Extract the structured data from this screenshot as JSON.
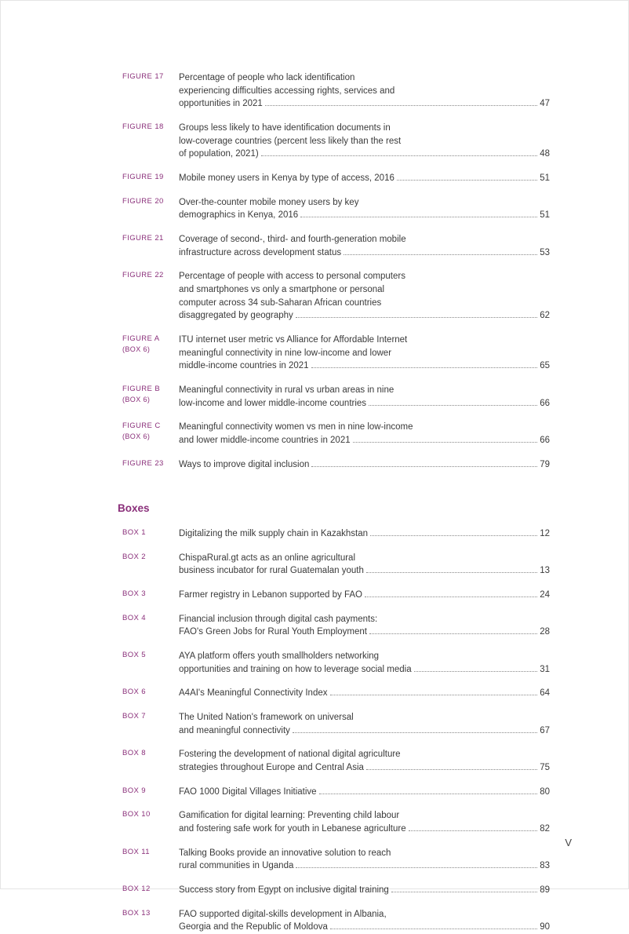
{
  "colors": {
    "accent": "#8a2f7a",
    "text": "#3a3a3a",
    "border": "#e5e5e5",
    "dot": "#888888",
    "background": "#ffffff"
  },
  "typography": {
    "body_fontsize": 11.5,
    "label_fontsize": 9.5,
    "header_fontsize": 13.5
  },
  "sections": [
    {
      "header": null,
      "items": [
        {
          "label": "FIGURE 17",
          "sublabel": null,
          "lines": [
            "Percentage of people who lack identification",
            "experiencing difficulties accessing rights, services and",
            "opportunities in 2021"
          ],
          "page": "47"
        },
        {
          "label": "FIGURE 18",
          "sublabel": null,
          "lines": [
            "Groups less likely to have identification documents in",
            "low-coverage countries (percent less likely than the rest",
            "of population, 2021)"
          ],
          "page": "48"
        },
        {
          "label": "FIGURE 19",
          "sublabel": null,
          "lines": [
            "Mobile money users in Kenya by type of access, 2016"
          ],
          "page": "51"
        },
        {
          "label": "FIGURE 20",
          "sublabel": null,
          "lines": [
            "Over-the-counter mobile money users by key",
            "demographics in Kenya, 2016"
          ],
          "page": "51"
        },
        {
          "label": "FIGURE 21",
          "sublabel": null,
          "lines": [
            "Coverage of second-, third- and fourth-generation mobile",
            "infrastructure across development status"
          ],
          "page": "53"
        },
        {
          "label": "FIGURE 22",
          "sublabel": null,
          "lines": [
            "Percentage of people with access to personal computers",
            "and smartphones vs only a smartphone or personal",
            "computer across 34 sub-Saharan African countries",
            "disaggregated by geography"
          ],
          "page": "62"
        },
        {
          "label": "FIGURE A",
          "sublabel": "(BOX 6)",
          "lines": [
            "ITU internet user metric vs Alliance for Affordable Internet",
            "meaningful connectivity in nine low-income and lower",
            "middle-income countries in 2021"
          ],
          "page": "65"
        },
        {
          "label": "FIGURE B",
          "sublabel": "(BOX 6)",
          "lines": [
            "Meaningful connectivity in rural vs urban areas in nine",
            "low-income and lower middle-income countries"
          ],
          "page": "66"
        },
        {
          "label": "FIGURE C",
          "sublabel": "(BOX 6)",
          "lines": [
            "Meaningful connectivity women vs men in nine low-income",
            "and lower middle-income countries in 2021"
          ],
          "page": "66"
        },
        {
          "label": "FIGURE 23",
          "sublabel": null,
          "lines": [
            "Ways to improve digital inclusion"
          ],
          "page": "79"
        }
      ]
    },
    {
      "header": "Boxes",
      "items": [
        {
          "label": "BOX 1",
          "sublabel": null,
          "lines": [
            "Digitalizing the milk supply chain in Kazakhstan"
          ],
          "page": "12"
        },
        {
          "label": "BOX 2",
          "sublabel": null,
          "lines": [
            "ChispaRural.gt acts as an online agricultural",
            "business incubator for rural Guatemalan youth"
          ],
          "page": "13"
        },
        {
          "label": "BOX 3",
          "sublabel": null,
          "lines": [
            "Farmer registry in Lebanon supported by FAO"
          ],
          "page": "24"
        },
        {
          "label": "BOX 4",
          "sublabel": null,
          "lines": [
            "Financial inclusion through digital cash payments:",
            "FAO's Green Jobs for Rural Youth Employment"
          ],
          "page": "28"
        },
        {
          "label": "BOX 5",
          "sublabel": null,
          "lines": [
            "AYA platform offers youth smallholders networking",
            "opportunities and training on how to leverage social media"
          ],
          "page": "31"
        },
        {
          "label": "BOX 6",
          "sublabel": null,
          "lines": [
            "A4AI's Meaningful Connectivity Index"
          ],
          "page": "64"
        },
        {
          "label": "BOX 7",
          "sublabel": null,
          "lines": [
            "The United Nation's framework on universal",
            "and meaningful connectivity"
          ],
          "page": "67"
        },
        {
          "label": "BOX 8",
          "sublabel": null,
          "lines": [
            "Fostering the development of national digital agriculture",
            "strategies throughout Europe and Central Asia"
          ],
          "page": "75"
        },
        {
          "label": "BOX 9",
          "sublabel": null,
          "lines": [
            "FAO 1000 Digital Villages Initiative"
          ],
          "page": "80"
        },
        {
          "label": "BOX 10",
          "sublabel": null,
          "lines": [
            "Gamification for digital learning: Preventing child labour",
            "and fostering safe work for youth in Lebanese agriculture"
          ],
          "page": "82"
        },
        {
          "label": "BOX 11",
          "sublabel": null,
          "lines": [
            "Talking Books provide an innovative solution to reach",
            "rural communities in Uganda"
          ],
          "page": "83"
        },
        {
          "label": "BOX 12",
          "sublabel": null,
          "lines": [
            "Success story from Egypt on inclusive digital training"
          ],
          "page": "89"
        },
        {
          "label": "BOX 13",
          "sublabel": null,
          "lines": [
            "FAO supported digital-skills development in Albania,",
            "Georgia and the Republic of Moldova"
          ],
          "page": "90"
        }
      ]
    }
  ],
  "page_number": "V"
}
